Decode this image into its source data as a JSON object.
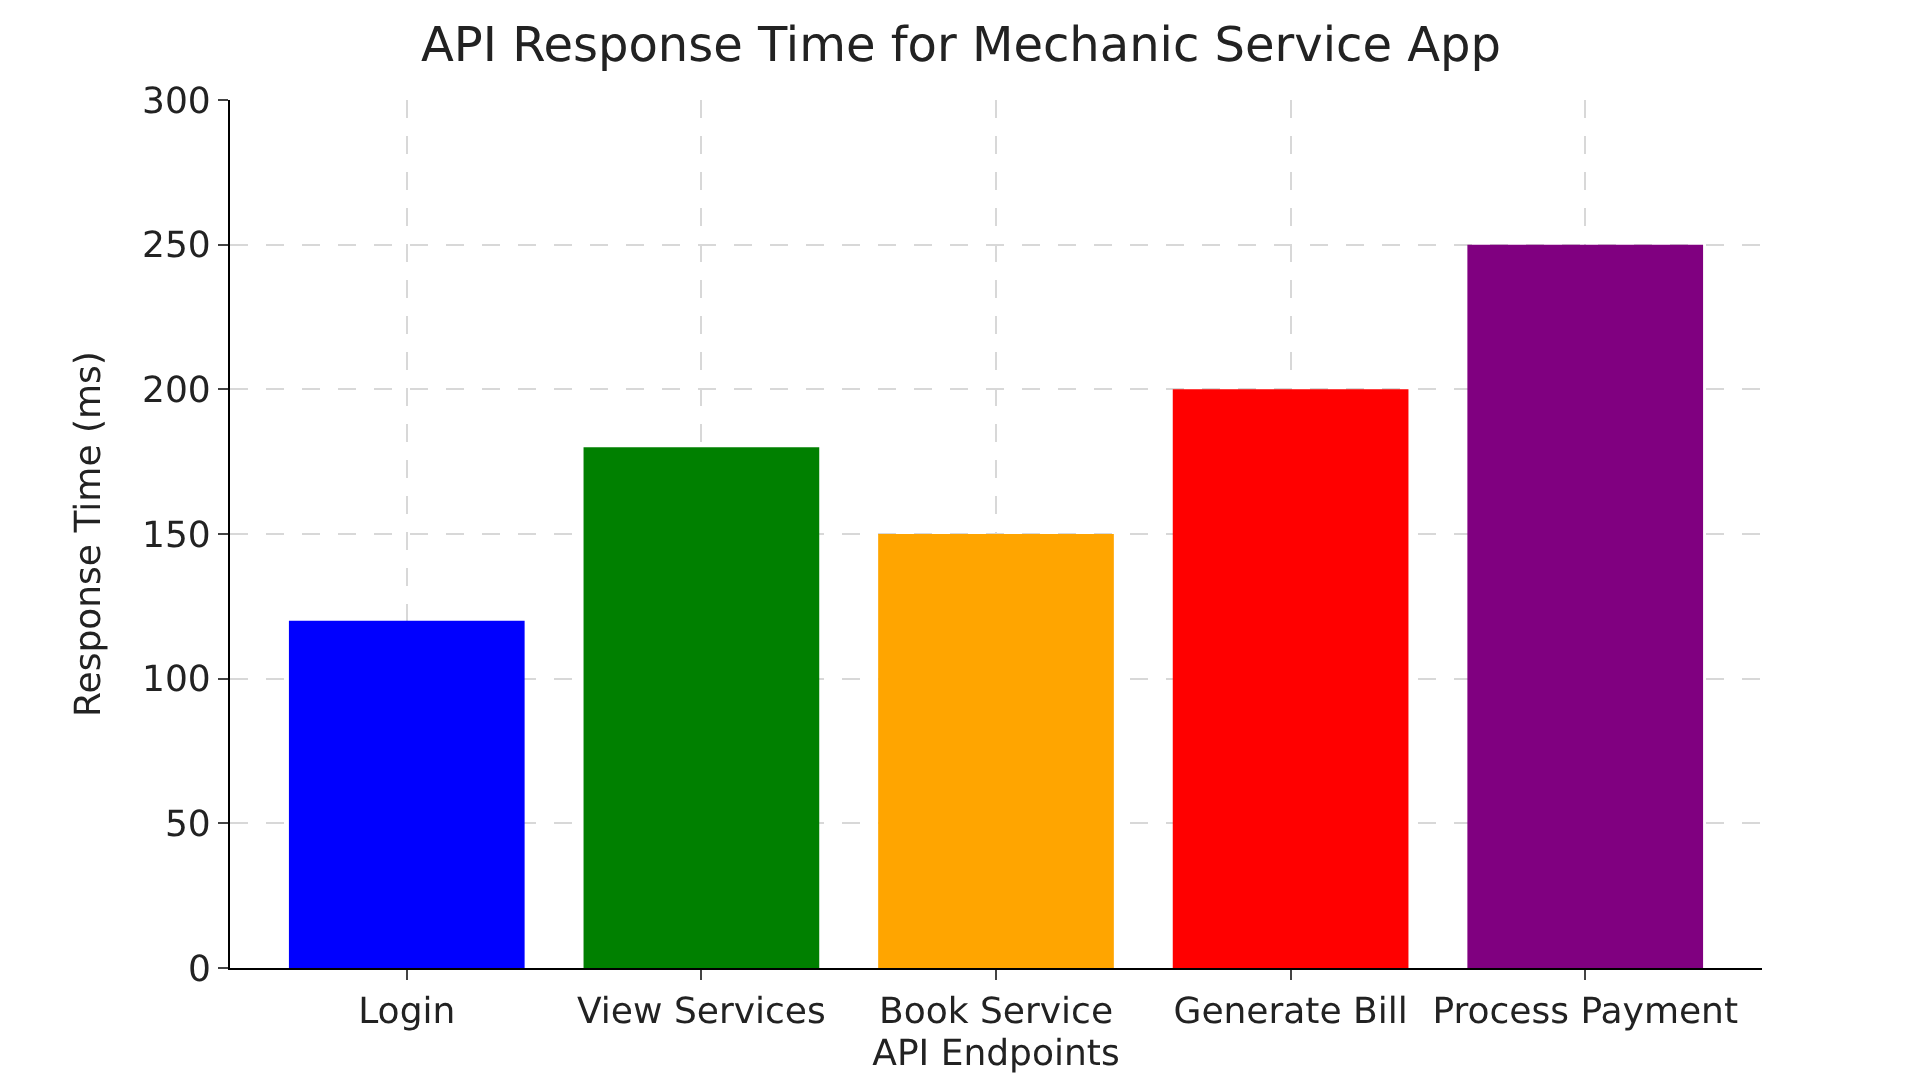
{
  "chart_data": {
    "type": "bar",
    "title": "API Response Time for Mechanic Service App",
    "xlabel": "API Endpoints",
    "ylabel": "Response Time (ms)",
    "categories": [
      "Login",
      "View Services",
      "Book Service",
      "Generate Bill",
      "Process Payment"
    ],
    "values": [
      120,
      180,
      150,
      200,
      250
    ],
    "colors": [
      "#0000ff",
      "#008000",
      "#ffa500",
      "#ff0000",
      "#800080"
    ],
    "ylim": [
      0,
      300
    ],
    "yticks": [
      0,
      50,
      100,
      150,
      200,
      250,
      300
    ],
    "grid": true
  }
}
